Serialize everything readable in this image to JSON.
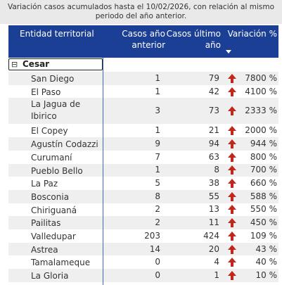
{
  "title": {
    "line1": "Variación casos acumulados hasta el 10/02/2026, con relación al mismo",
    "line2": "periodo del año anterior."
  },
  "table": {
    "headers": [
      "Entidad territorial",
      "Casos año anterior",
      "Casos último año",
      "Variación %"
    ],
    "group": {
      "icon": "⊟",
      "label": "Cesar"
    },
    "rows": [
      [
        "San Diego",
        "1",
        "79",
        "7800 %"
      ],
      [
        "El Paso",
        "1",
        "42",
        "4100 %"
      ],
      [
        "La Jagua de Ibirico",
        "3",
        "73",
        "2333 %"
      ],
      [
        "El Copey",
        "1",
        "21",
        "2000 %"
      ],
      [
        "Agustín Codazzi",
        "9",
        "94",
        "944 %"
      ],
      [
        "Curumaní",
        "7",
        "63",
        "800 %"
      ],
      [
        "Pueblo Bello",
        "1",
        "8",
        "700 %"
      ],
      [
        "La Paz",
        "5",
        "38",
        "660 %"
      ],
      [
        "Bosconia",
        "8",
        "55",
        "588 %"
      ],
      [
        "Chiriguaná",
        "2",
        "13",
        "550 %"
      ],
      [
        "Pailitas",
        "2",
        "11",
        "450 %"
      ],
      [
        "Valledupar",
        "203",
        "424",
        "109 %"
      ],
      [
        "Astrea",
        "14",
        "20",
        "43 %"
      ],
      [
        "Tamalameque",
        "0",
        "4",
        "40 %"
      ],
      [
        "La Gloria",
        "0",
        "1",
        "10 %"
      ]
    ]
  }
}
